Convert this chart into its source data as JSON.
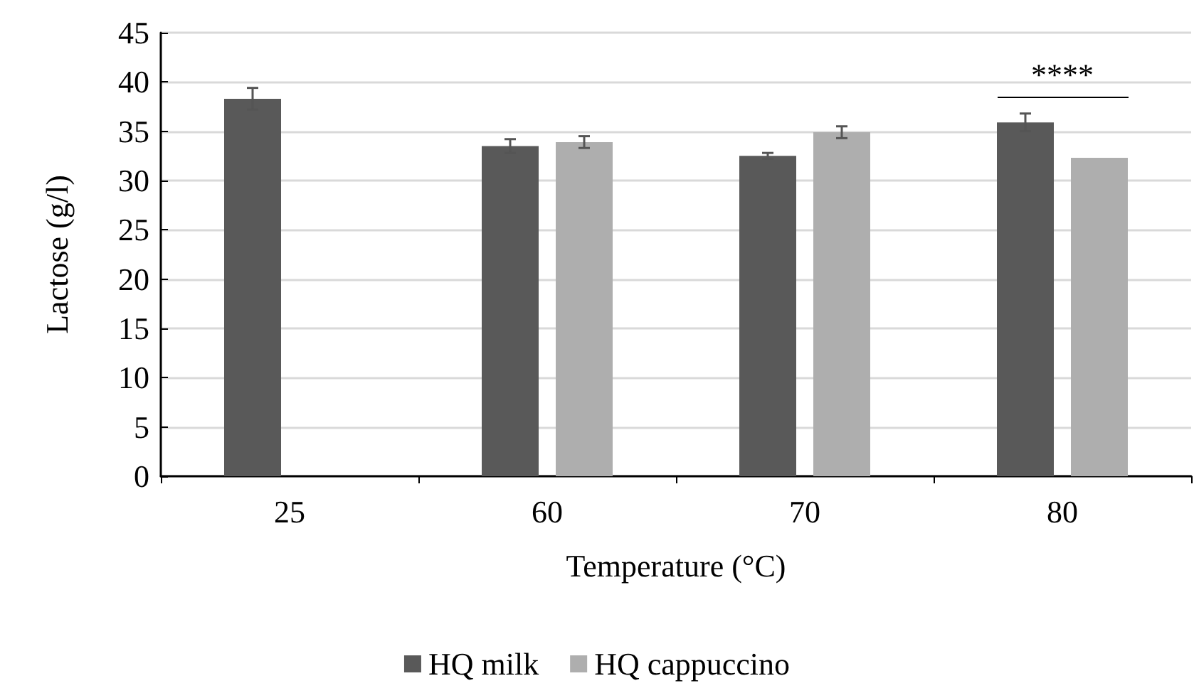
{
  "chart_data": {
    "type": "bar",
    "xlabel": "Temperature (°C)",
    "ylabel": "Lactose (g/l)",
    "categories": [
      "25",
      "60",
      "70",
      "80"
    ],
    "series": [
      {
        "name": "HQ milk",
        "color": "#595959",
        "values": [
          38.3,
          33.5,
          32.5,
          35.9
        ],
        "errors": [
          1.1,
          0.7,
          0.3,
          0.9
        ]
      },
      {
        "name": "HQ cappuccino",
        "color": "#aeaeae",
        "values": [
          null,
          33.9,
          34.9,
          32.3
        ],
        "errors": [
          null,
          0.6,
          0.6,
          null
        ]
      }
    ],
    "ylim": [
      0,
      45
    ],
    "yticks": [
      0,
      5,
      10,
      15,
      20,
      25,
      30,
      35,
      40,
      45
    ],
    "grid": "y",
    "legend": "bottom",
    "annotations": [
      "****"
    ]
  }
}
